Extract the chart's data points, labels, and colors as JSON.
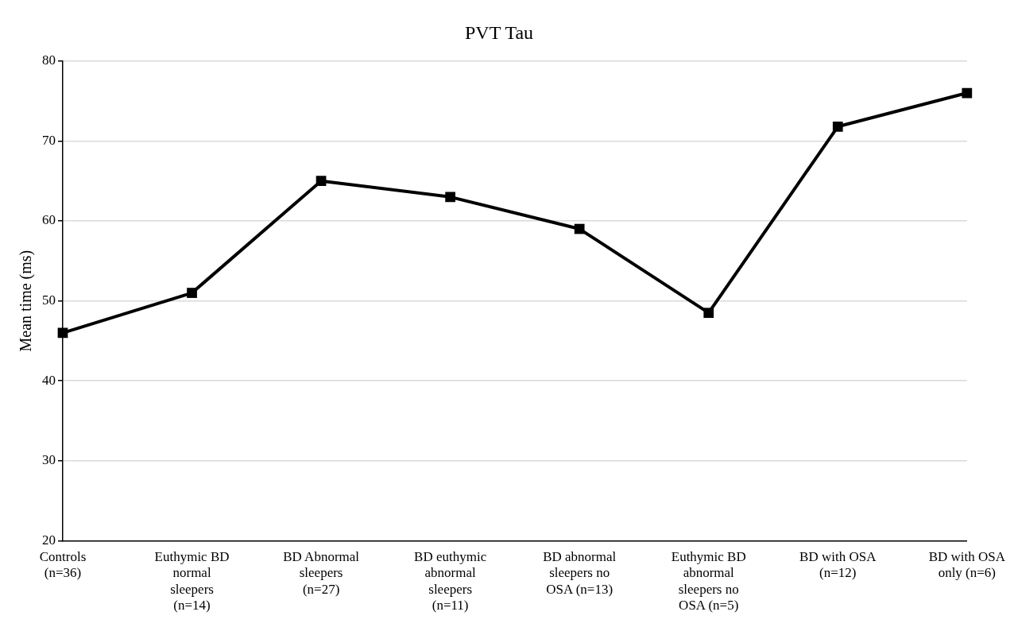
{
  "chart_data": {
    "type": "line",
    "title": "PVT Tau",
    "ylabel": "Mean time (ms)",
    "categories": [
      "Controls (n=36)",
      "Euthymic BD normal sleepers (n=14)",
      "BD Abnormal sleepers (n=27)",
      "BD euthymic abnormal sleepers (n=11)",
      "BD abnormal sleepers no OSA (n=13)",
      "Euthymic BD abnormal sleepers no OSA (n=5)",
      "BD with OSA (n=12)",
      "BD with OSA only (n=6)"
    ],
    "series": [
      {
        "color": "#000000",
        "values": [
          46,
          51,
          65,
          63,
          59,
          48.5,
          71.8,
          76
        ]
      }
    ],
    "ylim": [
      20,
      80
    ],
    "yticks": [
      20,
      30,
      40,
      50,
      60,
      70,
      80
    ],
    "grid": "y",
    "legend": false,
    "marker": "square",
    "line_style": "solid"
  }
}
